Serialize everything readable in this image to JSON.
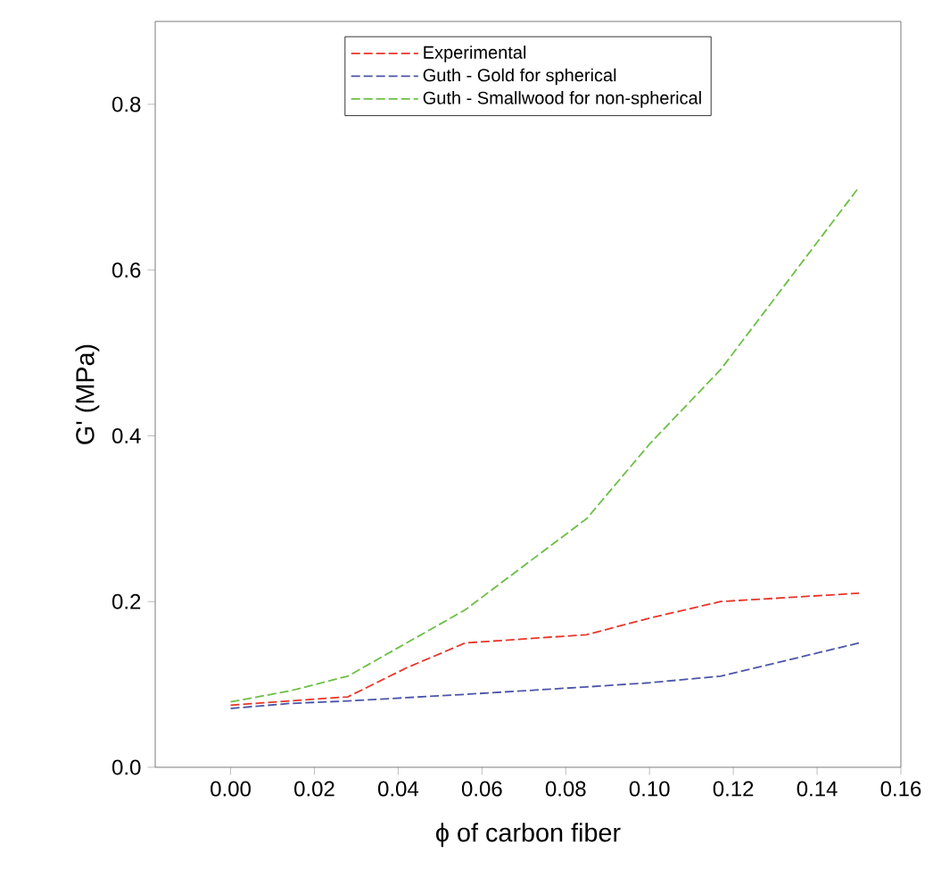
{
  "chart_data": {
    "type": "line",
    "xlabel": "ϕ of carbon fiber",
    "ylabel": "G' (MPa)",
    "xlim": [
      -0.018,
      0.16
    ],
    "ylim": [
      0,
      0.9
    ],
    "xticks": [
      {
        "value": 0,
        "label": "0.00"
      },
      {
        "value": 0.02,
        "label": "0.02"
      },
      {
        "value": 0.04,
        "label": "0.04"
      },
      {
        "value": 0.06,
        "label": "0.06"
      },
      {
        "value": 0.08,
        "label": "0.08"
      },
      {
        "value": 0.1,
        "label": "0.10"
      },
      {
        "value": 0.12,
        "label": "0.12"
      },
      {
        "value": 0.14,
        "label": "0.14"
      },
      {
        "value": 0.16,
        "label": "0.16"
      }
    ],
    "yticks": [
      {
        "value": 0,
        "label": "0.0"
      },
      {
        "value": 0.2,
        "label": "0.2"
      },
      {
        "value": 0.4,
        "label": "0.4"
      },
      {
        "value": 0.6,
        "label": "0.6"
      },
      {
        "value": 0.8,
        "label": "0.8"
      }
    ],
    "x": [
      0,
      0.014,
      0.028,
      0.042,
      0.056,
      0.085,
      0.1,
      0.117,
      0.15
    ],
    "series": [
      {
        "name": "Experimental",
        "color": "#e8352a",
        "values": [
          0.075,
          0.08,
          0.085,
          0.12,
          0.15,
          0.16,
          0.18,
          0.2,
          0.21
        ]
      },
      {
        "name": "Guth - Gold for spherical",
        "color": "#4a55a8",
        "values": [
          0.071,
          0.077,
          0.08,
          0.084,
          0.088,
          0.097,
          0.102,
          0.11,
          0.15
        ]
      },
      {
        "name": "Guth - Smallwood for non-spherical",
        "color": "#6cbf45",
        "values": [
          0.079,
          0.092,
          0.11,
          0.15,
          0.19,
          0.3,
          0.39,
          0.48,
          0.7
        ]
      }
    ],
    "legend": "top",
    "grid": false,
    "line_style": "dashed",
    "marker": "none"
  }
}
